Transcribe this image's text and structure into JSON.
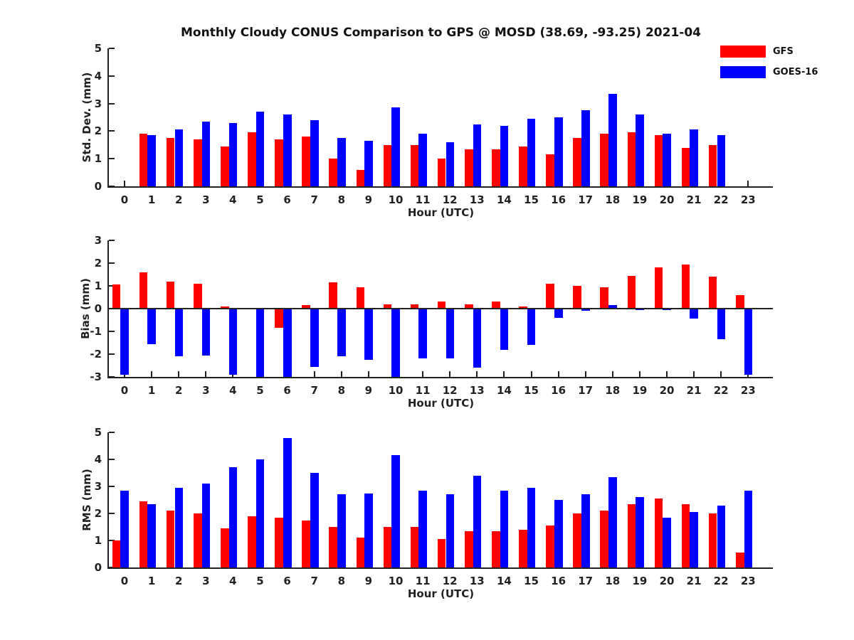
{
  "title": "Monthly Cloudy CONUS Comparison to GPS @ MOSD (38.69, -93.25) 2021-04",
  "legend": {
    "position": "top-right",
    "items": [
      {
        "label": "GFS",
        "color": "#ff0000"
      },
      {
        "label": "GOES-16",
        "color": "#0000ff"
      }
    ]
  },
  "axis_color": "#212121",
  "chart_data": [
    {
      "type": "bar",
      "panel": "std-dev",
      "ylabel": "Std. Dev. (mm)",
      "xlabel": "Hour (UTC)",
      "ylim": [
        0,
        5
      ],
      "yticks": [
        0,
        1,
        2,
        3,
        4,
        5
      ],
      "grid": false,
      "categories": [
        0,
        1,
        2,
        3,
        4,
        5,
        6,
        7,
        8,
        9,
        10,
        11,
        12,
        13,
        14,
        15,
        16,
        17,
        18,
        19,
        20,
        21,
        22,
        23
      ],
      "series": [
        {
          "name": "GFS",
          "color": "#ff0000",
          "values": [
            0,
            1.9,
            1.75,
            1.7,
            1.45,
            1.95,
            1.7,
            1.8,
            1.0,
            0.6,
            1.5,
            1.5,
            1.0,
            1.35,
            1.35,
            1.45,
            1.15,
            1.75,
            1.9,
            1.95,
            1.85,
            1.4,
            1.5,
            0
          ]
        },
        {
          "name": "GOES-16",
          "color": "#0000ff",
          "values": [
            0,
            1.85,
            2.05,
            2.35,
            2.3,
            2.7,
            2.6,
            2.4,
            1.75,
            1.65,
            2.85,
            1.9,
            1.6,
            2.25,
            2.2,
            2.45,
            2.5,
            2.75,
            3.35,
            2.6,
            1.9,
            2.05,
            1.85,
            0
          ]
        }
      ]
    },
    {
      "type": "bar",
      "panel": "bias",
      "ylabel": "Bias (mm)",
      "xlabel": "Hour (UTC)",
      "ylim": [
        -3,
        3
      ],
      "yticks": [
        -3,
        -2,
        -1,
        0,
        1,
        2,
        3
      ],
      "grid": false,
      "categories": [
        0,
        1,
        2,
        3,
        4,
        5,
        6,
        7,
        8,
        9,
        10,
        11,
        12,
        13,
        14,
        15,
        16,
        17,
        18,
        19,
        20,
        21,
        22,
        23
      ],
      "series": [
        {
          "name": "GFS",
          "color": "#ff0000",
          "values": [
            1.05,
            1.6,
            1.2,
            1.1,
            0.1,
            0,
            -0.85,
            0.15,
            1.15,
            0.95,
            0.2,
            0.2,
            0.3,
            0.2,
            0.3,
            0.1,
            1.1,
            1.0,
            0.95,
            1.45,
            1.8,
            1.95,
            1.4,
            0.6
          ]
        },
        {
          "name": "GOES-16",
          "color": "#0000ff",
          "values": [
            -2.9,
            -1.55,
            -2.1,
            -2.05,
            -2.9,
            -3.0,
            -3.0,
            -2.55,
            -2.1,
            -2.25,
            -3.0,
            -2.2,
            -2.2,
            -2.6,
            -1.8,
            -1.6,
            -0.4,
            -0.1,
            0.15,
            -0.05,
            -0.05,
            -0.45,
            -1.35,
            -2.9
          ]
        }
      ]
    },
    {
      "type": "bar",
      "panel": "rms",
      "ylabel": "RMS (mm)",
      "xlabel": "Hour (UTC)",
      "ylim": [
        0,
        5
      ],
      "yticks": [
        0,
        1,
        2,
        3,
        4,
        5
      ],
      "grid": false,
      "categories": [
        0,
        1,
        2,
        3,
        4,
        5,
        6,
        7,
        8,
        9,
        10,
        11,
        12,
        13,
        14,
        15,
        16,
        17,
        18,
        19,
        20,
        21,
        22,
        23
      ],
      "series": [
        {
          "name": "GFS",
          "color": "#ff0000",
          "values": [
            1.0,
            2.45,
            2.1,
            2.0,
            1.45,
            1.9,
            1.85,
            1.75,
            1.5,
            1.1,
            1.5,
            1.5,
            1.05,
            1.35,
            1.35,
            1.4,
            1.55,
            2.0,
            2.1,
            2.35,
            2.55,
            2.35,
            2.0,
            0.55
          ]
        },
        {
          "name": "GOES-16",
          "color": "#0000ff",
          "values": [
            2.85,
            2.35,
            2.95,
            3.1,
            3.7,
            4.0,
            4.8,
            3.5,
            2.7,
            2.75,
            4.15,
            2.85,
            2.7,
            3.4,
            2.85,
            2.95,
            2.5,
            2.7,
            3.35,
            2.6,
            1.85,
            2.05,
            2.3,
            2.85
          ]
        }
      ]
    }
  ]
}
